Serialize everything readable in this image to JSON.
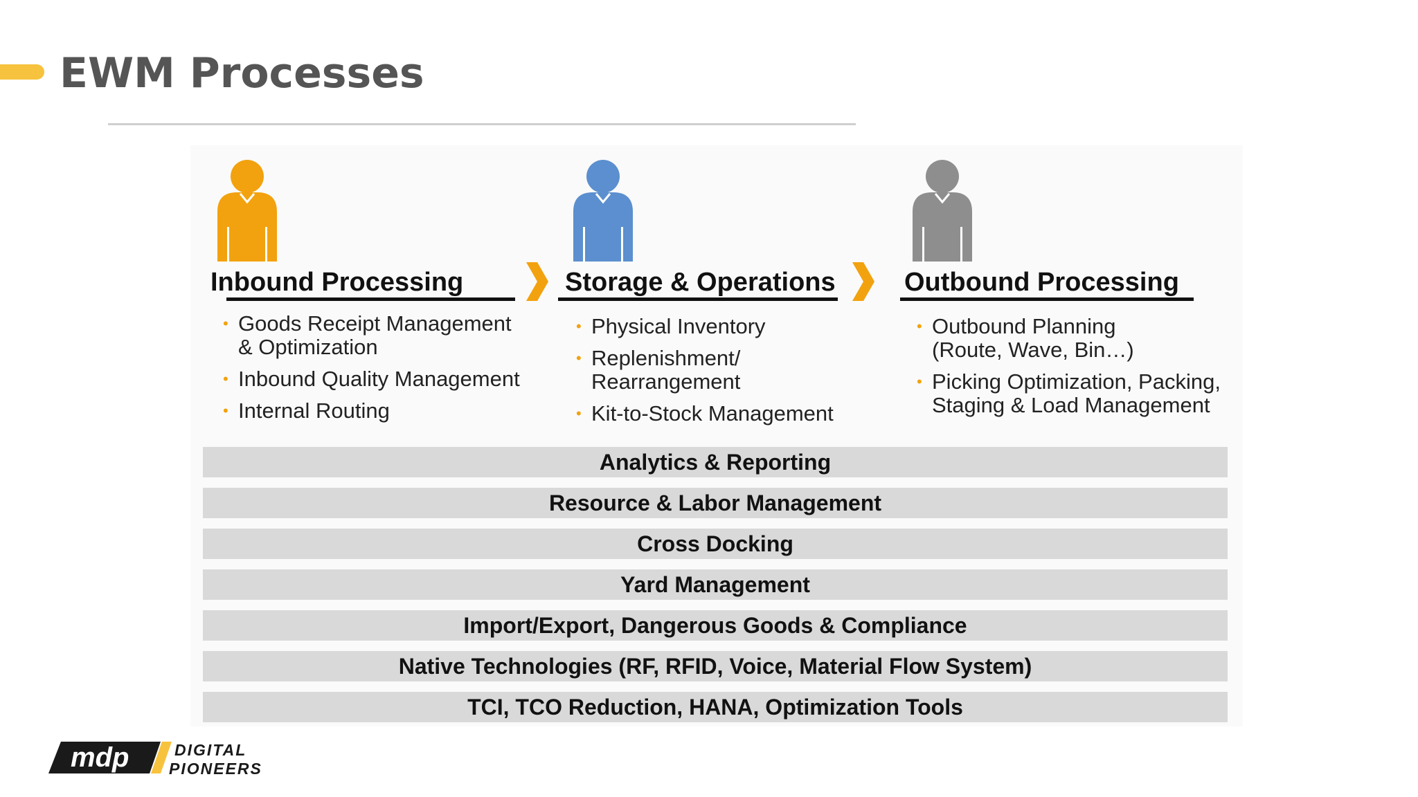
{
  "slide": {
    "title": "EWM Processes",
    "accent_color": "#F7C23D"
  },
  "columns": [
    {
      "title": "Inbound Processing",
      "icon": "person-icon",
      "icon_color": "#F2A20F",
      "bullets": [
        "Goods Receipt Management\n& Optimization",
        "Inbound Quality Management",
        "Internal Routing"
      ]
    },
    {
      "title": "Storage & Operations",
      "icon": "person-icon",
      "icon_color": "#5B8FCF",
      "bullets": [
        "Physical Inventory",
        "Replenishment/\nRearrangement",
        "Kit-to-Stock Management"
      ]
    },
    {
      "title": "Outbound Processing",
      "icon": "person-icon",
      "icon_color": "#8E8E8E",
      "bullets": [
        "Outbound Planning\n(Route, Wave, Bin…)",
        "Picking Optimization, Packing,\nStaging & Load Management"
      ]
    }
  ],
  "arrow_color": "#F2A20F",
  "bullet_color": "#F2A20F",
  "bands": [
    "Analytics & Reporting",
    "Resource & Labor Management",
    "Cross Docking",
    "Yard Management",
    "Import/Export, Dangerous Goods & Compliance",
    "Native Technologies (RF, RFID, Voice,  Material Flow System)",
    "TCI, TCO Reduction, HANA, Optimization Tools"
  ],
  "logo": {
    "mark": "mdp",
    "line1": "DIGITAL",
    "line2": "PIONEERS"
  }
}
